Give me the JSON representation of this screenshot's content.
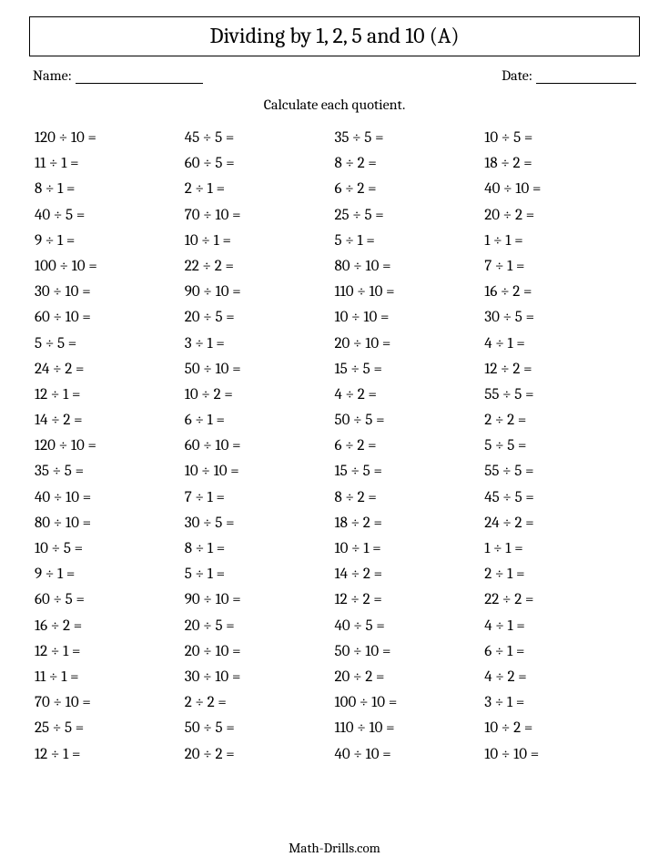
{
  "title": "Dividing by 1, 2, 5 and 10 (A)",
  "labels": {
    "name": "Name:",
    "date": "Date:"
  },
  "instruction": "Calculate each quotient.",
  "footer": "Math-Drills.com",
  "layout": {
    "columns": 4,
    "rows": 25,
    "title_fontsize": 24,
    "body_fontsize": 17,
    "instruction_fontsize": 16,
    "footer_fontsize": 15,
    "border_color": "#000000",
    "background_color": "#ffffff",
    "text_color": "#000000",
    "divide_symbol": "÷",
    "equals_symbol": "="
  },
  "problems": {
    "col1": [
      [
        120,
        10
      ],
      [
        11,
        1
      ],
      [
        8,
        1
      ],
      [
        40,
        5
      ],
      [
        9,
        1
      ],
      [
        100,
        10
      ],
      [
        30,
        10
      ],
      [
        60,
        10
      ],
      [
        5,
        5
      ],
      [
        24,
        2
      ],
      [
        12,
        1
      ],
      [
        14,
        2
      ],
      [
        120,
        10
      ],
      [
        35,
        5
      ],
      [
        40,
        10
      ],
      [
        80,
        10
      ],
      [
        10,
        5
      ],
      [
        9,
        1
      ],
      [
        60,
        5
      ],
      [
        16,
        2
      ],
      [
        12,
        1
      ],
      [
        11,
        1
      ],
      [
        70,
        10
      ],
      [
        25,
        5
      ],
      [
        12,
        1
      ]
    ],
    "col2": [
      [
        45,
        5
      ],
      [
        60,
        5
      ],
      [
        2,
        1
      ],
      [
        70,
        10
      ],
      [
        10,
        1
      ],
      [
        22,
        2
      ],
      [
        90,
        10
      ],
      [
        20,
        5
      ],
      [
        3,
        1
      ],
      [
        50,
        10
      ],
      [
        10,
        2
      ],
      [
        6,
        1
      ],
      [
        60,
        10
      ],
      [
        10,
        10
      ],
      [
        7,
        1
      ],
      [
        30,
        5
      ],
      [
        8,
        1
      ],
      [
        5,
        1
      ],
      [
        90,
        10
      ],
      [
        20,
        5
      ],
      [
        20,
        10
      ],
      [
        30,
        10
      ],
      [
        2,
        2
      ],
      [
        50,
        5
      ],
      [
        20,
        2
      ]
    ],
    "col3": [
      [
        35,
        5
      ],
      [
        8,
        2
      ],
      [
        6,
        2
      ],
      [
        25,
        5
      ],
      [
        5,
        1
      ],
      [
        80,
        10
      ],
      [
        110,
        10
      ],
      [
        10,
        10
      ],
      [
        20,
        10
      ],
      [
        15,
        5
      ],
      [
        4,
        2
      ],
      [
        50,
        5
      ],
      [
        6,
        2
      ],
      [
        15,
        5
      ],
      [
        8,
        2
      ],
      [
        18,
        2
      ],
      [
        10,
        1
      ],
      [
        14,
        2
      ],
      [
        12,
        2
      ],
      [
        40,
        5
      ],
      [
        50,
        10
      ],
      [
        20,
        2
      ],
      [
        100,
        10
      ],
      [
        110,
        10
      ],
      [
        40,
        10
      ]
    ],
    "col4": [
      [
        10,
        5
      ],
      [
        18,
        2
      ],
      [
        40,
        10
      ],
      [
        20,
        2
      ],
      [
        1,
        1
      ],
      [
        7,
        1
      ],
      [
        16,
        2
      ],
      [
        30,
        5
      ],
      [
        4,
        1
      ],
      [
        12,
        2
      ],
      [
        55,
        5
      ],
      [
        2,
        2
      ],
      [
        5,
        5
      ],
      [
        55,
        5
      ],
      [
        45,
        5
      ],
      [
        24,
        2
      ],
      [
        1,
        1
      ],
      [
        2,
        1
      ],
      [
        22,
        2
      ],
      [
        4,
        1
      ],
      [
        6,
        1
      ],
      [
        4,
        2
      ],
      [
        3,
        1
      ],
      [
        10,
        2
      ],
      [
        10,
        10
      ]
    ]
  }
}
